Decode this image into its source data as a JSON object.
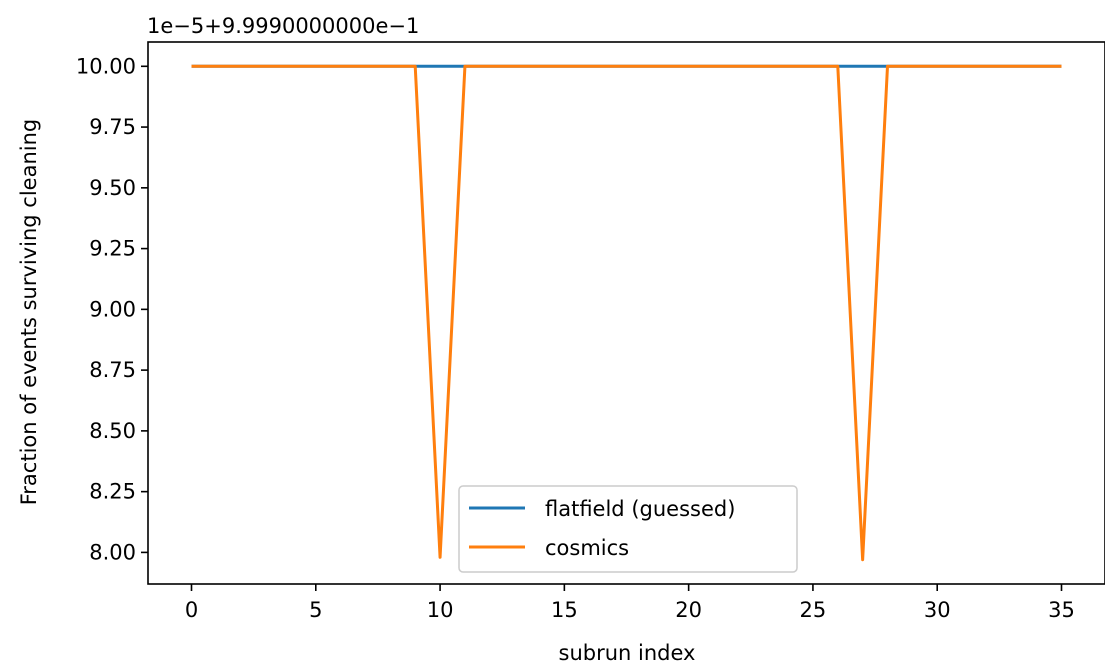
{
  "chart_data": {
    "type": "line",
    "title": "",
    "xlabel": "subrun index",
    "ylabel": "Fraction of events surviving cleaning",
    "offset_text": "1e−5+9.9990000000e−1",
    "x": [
      0,
      1,
      2,
      3,
      4,
      5,
      6,
      7,
      8,
      9,
      10,
      11,
      12,
      13,
      14,
      15,
      16,
      17,
      18,
      19,
      20,
      21,
      22,
      23,
      24,
      25,
      26,
      27,
      28,
      29,
      30,
      31,
      32,
      33,
      34,
      35
    ],
    "xlim": [
      -1.75,
      36.75
    ],
    "ylim": [
      7.87,
      10.1
    ],
    "xticks": [
      0,
      5,
      10,
      15,
      20,
      25,
      30,
      35
    ],
    "xtick_labels": [
      "0",
      "5",
      "10",
      "15",
      "20",
      "25",
      "30",
      "35"
    ],
    "yticks": [
      8.0,
      8.25,
      8.5,
      8.75,
      9.0,
      9.25,
      9.5,
      9.75,
      10.0
    ],
    "ytick_labels": [
      "8.00",
      "8.25",
      "8.50",
      "8.75",
      "9.00",
      "9.25",
      "9.50",
      "9.75",
      "10.00"
    ],
    "grid": false,
    "legend_position": "lower-center",
    "series": [
      {
        "name": "flatfield (guessed)",
        "color": "#1f77b4",
        "values": [
          10,
          10,
          10,
          10,
          10,
          10,
          10,
          10,
          10,
          10,
          10,
          10,
          10,
          10,
          10,
          10,
          10,
          10,
          10,
          10,
          10,
          10,
          10,
          10,
          10,
          10,
          10,
          10,
          10,
          10,
          10,
          10,
          10,
          10,
          10,
          10
        ]
      },
      {
        "name": "cosmics",
        "color": "#ff7f0e",
        "values": [
          10,
          10,
          10,
          10,
          10,
          10,
          10,
          10,
          10,
          10,
          7.98,
          10,
          10,
          10,
          10,
          10,
          10,
          10,
          10,
          10,
          10,
          10,
          10,
          10,
          10,
          10,
          10,
          7.97,
          10,
          10,
          10,
          10,
          10,
          10,
          10,
          10
        ]
      }
    ]
  }
}
